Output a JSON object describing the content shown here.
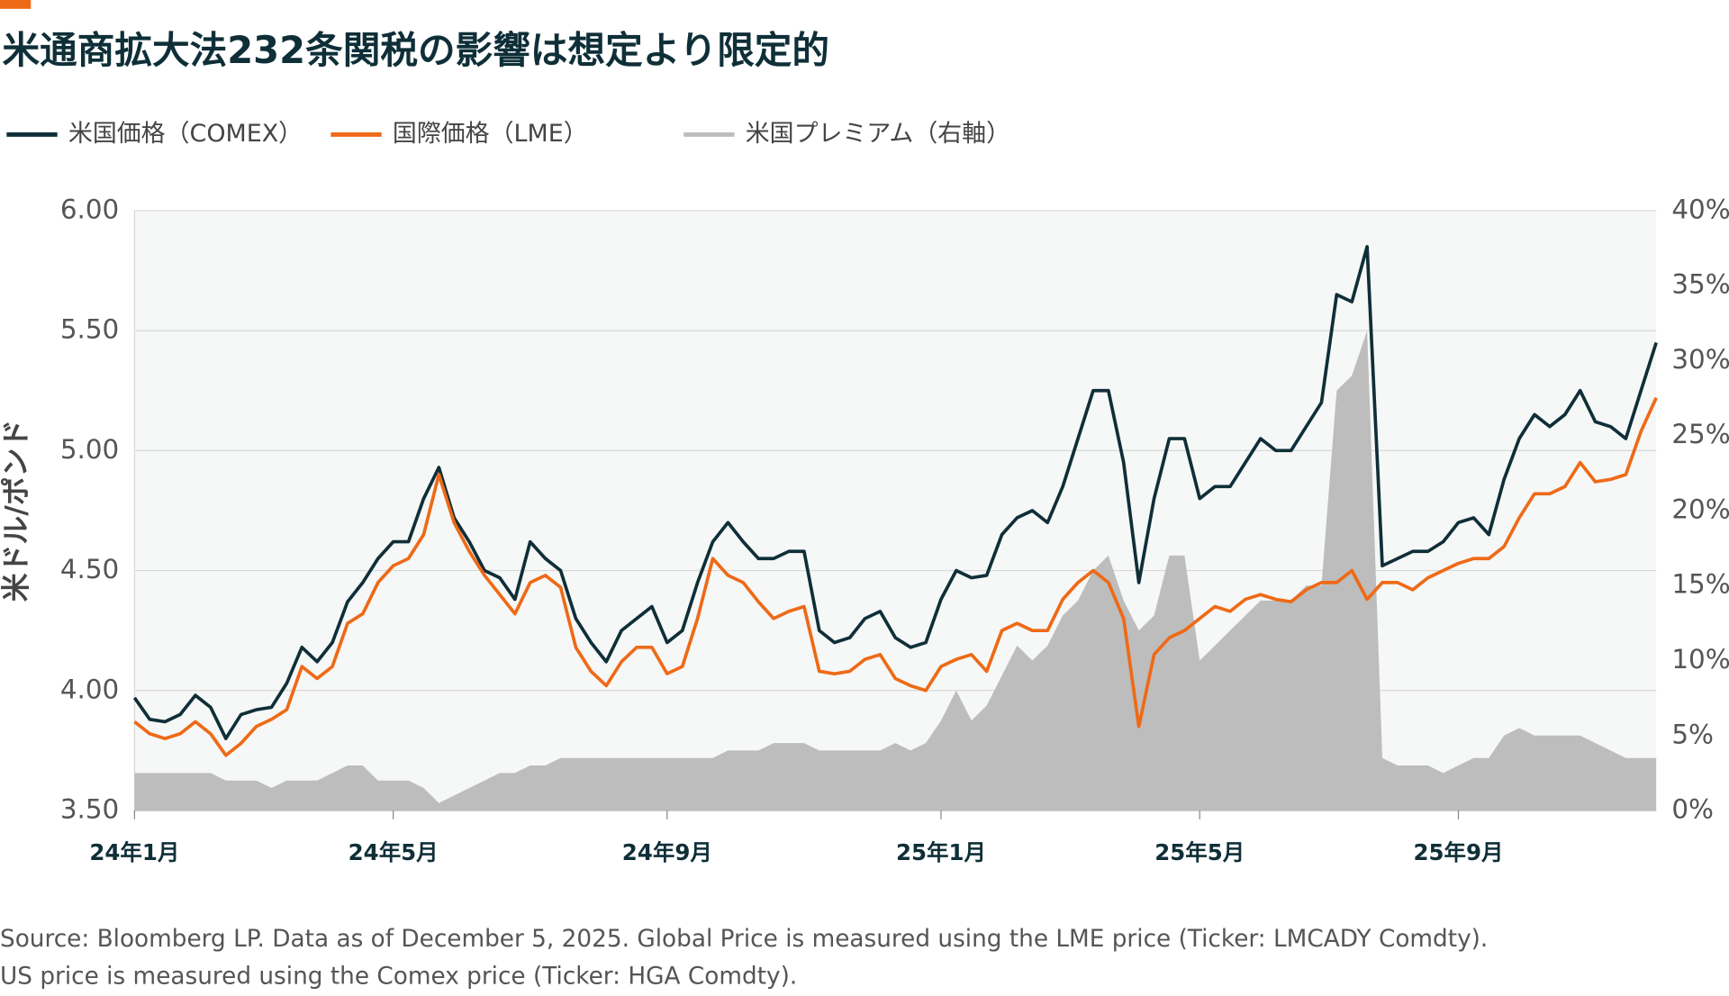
{
  "chart_data": {
    "type": "line",
    "title": "米通商拡大法232条関税の影響は想定より限定的",
    "ylabel": "米ドル/ポンド",
    "categories": [
      "24年1月",
      null,
      null,
      null,
      null,
      null,
      null,
      null,
      null,
      null,
      null,
      null,
      null,
      null,
      null,
      null,
      null,
      "24年5月",
      null,
      null,
      null,
      null,
      null,
      null,
      null,
      null,
      null,
      null,
      null,
      null,
      null,
      null,
      null,
      null,
      null,
      "24年9月",
      null,
      null,
      null,
      null,
      null,
      null,
      null,
      null,
      null,
      null,
      null,
      null,
      null,
      null,
      null,
      null,
      null,
      "25年1月",
      null,
      null,
      null,
      null,
      null,
      null,
      null,
      null,
      null,
      null,
      null,
      null,
      null,
      null,
      null,
      null,
      "25年5月",
      null,
      null,
      null,
      null,
      null,
      null,
      null,
      null,
      null,
      null,
      null,
      null,
      null,
      null,
      null,
      null,
      "25年9月",
      null,
      null,
      null,
      null,
      null,
      null,
      null,
      null,
      null,
      null,
      null,
      null,
      null
    ],
    "ylim": [
      3.5,
      6.0
    ],
    "yticks": [
      {
        "value": 3.5,
        "label": "3.50"
      },
      {
        "value": 4.0,
        "label": "4.00"
      },
      {
        "value": 4.5,
        "label": "4.50"
      },
      {
        "value": 5.0,
        "label": "5.00"
      },
      {
        "value": 5.5,
        "label": "5.50"
      },
      {
        "value": 6.0,
        "label": "6.00"
      }
    ],
    "y2lim": [
      0,
      40
    ],
    "y2ticks": [
      {
        "value": 0,
        "label": "0%"
      },
      {
        "value": 5,
        "label": "5%"
      },
      {
        "value": 10,
        "label": "10%"
      },
      {
        "value": 15,
        "label": "15%"
      },
      {
        "value": 20,
        "label": "20%"
      },
      {
        "value": 25,
        "label": "25%"
      },
      {
        "value": 30,
        "label": "30%"
      },
      {
        "value": 35,
        "label": "35%"
      },
      {
        "value": 40,
        "label": "40%"
      }
    ],
    "grid": true,
    "legend": "top",
    "series": [
      {
        "name": "米国価格（COMEX）",
        "color": "#0f2f38",
        "values": [
          3.97,
          3.88,
          3.87,
          3.9,
          3.98,
          3.93,
          3.8,
          3.9,
          3.92,
          3.93,
          4.03,
          4.18,
          4.12,
          4.2,
          4.37,
          4.45,
          4.55,
          4.62,
          4.62,
          4.8,
          4.93,
          4.72,
          4.62,
          4.5,
          4.47,
          4.38,
          4.62,
          4.55,
          4.5,
          4.3,
          4.2,
          4.12,
          4.25,
          4.3,
          4.35,
          4.2,
          4.25,
          4.45,
          4.62,
          4.7,
          4.62,
          4.55,
          4.55,
          4.58,
          4.58,
          4.25,
          4.2,
          4.22,
          4.3,
          4.33,
          4.22,
          4.18,
          4.2,
          4.38,
          4.5,
          4.47,
          4.48,
          4.65,
          4.72,
          4.75,
          4.7,
          4.85,
          5.05,
          5.25,
          5.25,
          4.95,
          4.45,
          4.8,
          5.05,
          5.05,
          4.8,
          4.85,
          4.85,
          4.95,
          5.05,
          5.0,
          5.0,
          5.1,
          5.2,
          5.65,
          5.62,
          5.85,
          4.52,
          4.55,
          4.58,
          4.58,
          4.62,
          4.7,
          4.72,
          4.65,
          4.88,
          5.05,
          5.15,
          5.1,
          5.15,
          5.25,
          5.12,
          5.1,
          5.05,
          5.25,
          5.45
        ]
      },
      {
        "name": "国際価格（LME）",
        "color": "#ee6a17",
        "values": [
          3.87,
          3.82,
          3.8,
          3.82,
          3.87,
          3.82,
          3.73,
          3.78,
          3.85,
          3.88,
          3.92,
          4.1,
          4.05,
          4.1,
          4.28,
          4.32,
          4.45,
          4.52,
          4.55,
          4.65,
          4.9,
          4.7,
          4.58,
          4.48,
          4.4,
          4.32,
          4.45,
          4.48,
          4.43,
          4.18,
          4.08,
          4.02,
          4.12,
          4.18,
          4.18,
          4.07,
          4.1,
          4.3,
          4.55,
          4.48,
          4.45,
          4.37,
          4.3,
          4.33,
          4.35,
          4.08,
          4.07,
          4.08,
          4.13,
          4.15,
          4.05,
          4.02,
          4.0,
          4.1,
          4.13,
          4.15,
          4.08,
          4.25,
          4.28,
          4.25,
          4.25,
          4.38,
          4.45,
          4.5,
          4.45,
          4.3,
          3.85,
          4.15,
          4.22,
          4.25,
          4.3,
          4.35,
          4.33,
          4.38,
          4.4,
          4.38,
          4.37,
          4.42,
          4.45,
          4.45,
          4.5,
          4.38,
          4.45,
          4.45,
          4.42,
          4.47,
          4.5,
          4.53,
          4.55,
          4.55,
          4.6,
          4.72,
          4.82,
          4.82,
          4.85,
          4.95,
          4.87,
          4.88,
          4.9,
          5.08,
          5.22
        ]
      },
      {
        "name": "米国プレミアム（右軸）",
        "color": "#bdbdbd",
        "axis": "y2",
        "type": "area",
        "values": [
          2.5,
          2.5,
          2.5,
          2.5,
          2.5,
          2.5,
          2.0,
          2.0,
          2.0,
          1.5,
          2.0,
          2.0,
          2.0,
          2.5,
          3.0,
          3.0,
          2.0,
          2.0,
          2.0,
          1.5,
          0.5,
          1.0,
          1.5,
          2.0,
          2.5,
          2.5,
          3.0,
          3.0,
          3.5,
          3.5,
          3.5,
          3.5,
          3.5,
          3.5,
          3.5,
          3.5,
          3.5,
          3.5,
          3.5,
          4.0,
          4.0,
          4.0,
          4.5,
          4.5,
          4.5,
          4.0,
          4.0,
          4.0,
          4.0,
          4.0,
          4.5,
          4.0,
          4.5,
          6.0,
          8.0,
          6.0,
          7.0,
          9.0,
          11.0,
          10.0,
          11.0,
          13.0,
          14.0,
          16.0,
          17.0,
          14.0,
          12.0,
          13.0,
          17.0,
          17.0,
          10.0,
          11.0,
          12.0,
          13.0,
          14.0,
          14.0,
          14.0,
          15.0,
          15.0,
          28.0,
          29.0,
          32.0,
          3.5,
          3.0,
          3.0,
          3.0,
          2.5,
          3.0,
          3.5,
          3.5,
          5.0,
          5.5,
          5.0,
          5.0,
          5.0,
          5.0,
          4.5,
          4.0,
          3.5,
          3.5,
          3.5
        ]
      }
    ],
    "caption": [
      "Source: Bloomberg LP. Data as of December 5, 2025. Global Price is measured using the LME price (Ticker: LMCADY Comdty).",
      "US price is measured using the Comex price (Ticker: HGA Comdty)."
    ]
  }
}
